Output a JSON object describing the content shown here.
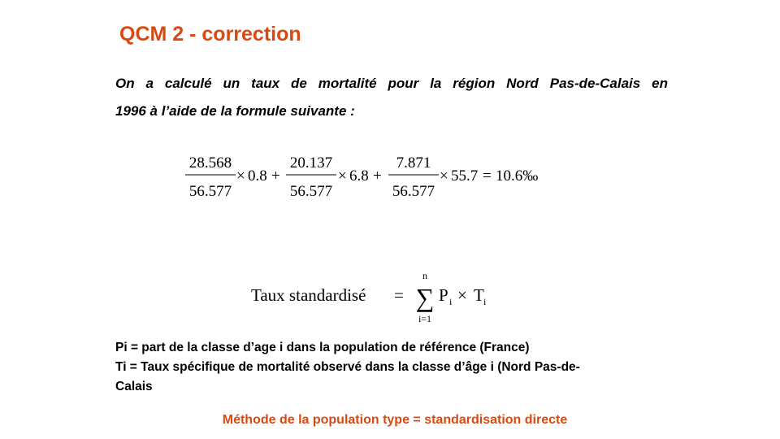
{
  "slide": {
    "title": "QCM 2 - correction",
    "intro_line1": "On a calculé un taux de mortalité pour la région Nord Pas-de-Calais en",
    "intro_line2": "1996 à l’aide de la formule suivante :",
    "formula": {
      "terms": [
        {
          "num": "28.568",
          "den": "56.577",
          "factor": "0.8"
        },
        {
          "num": "20.137",
          "den": "56.577",
          "factor": "6.8"
        },
        {
          "num": "7.871",
          "den": "56.577",
          "factor": "55.7"
        }
      ],
      "result": "10.6‰"
    },
    "standard_formula": {
      "label": "Taux standardisé",
      "sum_upper": "n",
      "sum_lower": "i=1",
      "p": "P",
      "t": "T",
      "subscript": "i"
    },
    "definitions": {
      "pi": "Pi = part de la classe d’age i dans la population de référence (France)",
      "ti_line1": "Ti = Taux spécifique de mortalité observé dans la classe d’âge i (Nord Pas-de-",
      "ti_line2": "Calais"
    },
    "method": "Méthode de la population type = standardisation directe"
  }
}
